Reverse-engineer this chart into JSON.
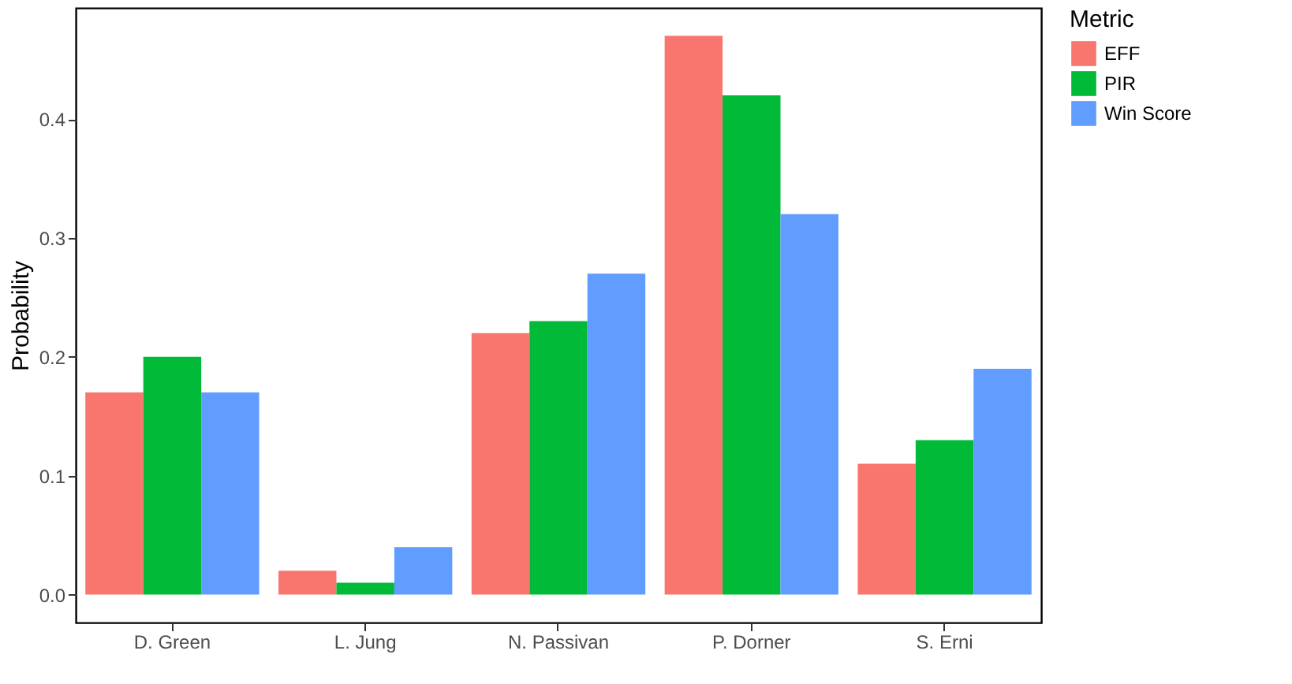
{
  "chart_data": {
    "type": "bar",
    "ylabel": "Probability",
    "legend_title": "Metric",
    "legend": "right",
    "categories": [
      "D. Green",
      "L. Jung",
      "N. Passivan",
      "P. Dorner",
      "S. Erni"
    ],
    "series": [
      {
        "name": "EFF",
        "color": "#f8766d",
        "values": [
          0.17,
          0.02,
          0.22,
          0.47,
          0.11
        ]
      },
      {
        "name": "PIR",
        "color": "#00ba38",
        "values": [
          0.2,
          0.01,
          0.23,
          0.42,
          0.13
        ]
      },
      {
        "name": "Win Score",
        "color": "#619cff",
        "values": [
          0.17,
          0.04,
          0.27,
          0.32,
          0.19
        ]
      }
    ],
    "ylim": [
      -0.0235,
      0.4935
    ],
    "yticks": [
      {
        "value": 0,
        "label": "0.0"
      },
      0.1,
      0.2,
      0.3,
      0.4
    ],
    "grid": false
  }
}
